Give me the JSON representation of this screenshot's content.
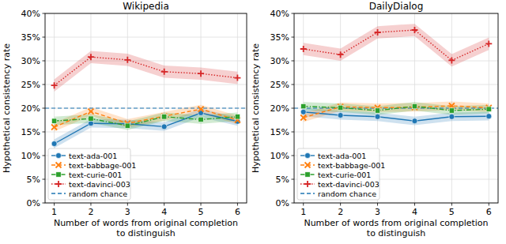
{
  "chart_data": [
    {
      "type": "line",
      "title": "Wikipedia",
      "x_label": "Number of words from original completion\nto distinguish",
      "y_label": "Hypothetical consistency rate",
      "x": [
        1,
        2,
        3,
        4,
        5,
        6
      ],
      "xlim": [
        0.75,
        6.25
      ],
      "xticks": [
        1,
        2,
        3,
        4,
        5,
        6
      ],
      "ylim": [
        0,
        40
      ],
      "yticks": [
        {
          "value": 0,
          "label": "0%"
        },
        {
          "value": 5,
          "label": "5%"
        },
        {
          "value": 10,
          "label": "10%"
        },
        {
          "value": 15,
          "label": "15%"
        },
        {
          "value": 20,
          "label": "20%"
        },
        {
          "value": 25,
          "label": "25%"
        },
        {
          "value": 30,
          "label": "30%"
        },
        {
          "value": 35,
          "label": "35%"
        },
        {
          "value": 40,
          "label": "40%"
        }
      ],
      "grid": true,
      "legend": "lower left",
      "series": [
        {
          "name": "text-ada-001",
          "color": "#1f77b4",
          "marker": "circle",
          "line_style": "solid",
          "values": [
            12.5,
            16.8,
            16.7,
            16.1,
            19.0,
            17.2
          ],
          "error": [
            0.9,
            0.9,
            0.9,
            0.9,
            0.9,
            0.9
          ]
        },
        {
          "name": "text-babbage-001",
          "color": "#ff7f0e",
          "marker": "x",
          "line_style": "dashed",
          "values": [
            16.0,
            19.3,
            16.8,
            18.3,
            19.8,
            17.5
          ],
          "error": [
            0.9,
            0.9,
            0.9,
            0.9,
            0.9,
            0.9
          ]
        },
        {
          "name": "text-curie-001",
          "color": "#2ca02c",
          "marker": "square",
          "line_style": "dashdot",
          "values": [
            17.3,
            17.8,
            16.3,
            18.2,
            17.6,
            18.2
          ],
          "error": [
            0.9,
            0.9,
            0.9,
            0.9,
            0.9,
            0.9
          ]
        },
        {
          "name": "text-davinci-003",
          "color": "#d62728",
          "marker": "plus",
          "line_style": "dotted",
          "values": [
            24.8,
            30.8,
            30.2,
            27.7,
            27.3,
            26.4
          ],
          "error": [
            1.3,
            1.3,
            1.3,
            1.3,
            1.3,
            1.3
          ]
        }
      ],
      "baseline": {
        "name": "random chance",
        "value": 20,
        "color": "#1f77b4",
        "line_style": "dashed"
      }
    },
    {
      "type": "line",
      "title": "DailyDialog",
      "x_label": "Number of words from original completion\nto distinguish",
      "y_label": "Hypothetical consistency rate",
      "x": [
        1,
        2,
        3,
        4,
        5,
        6
      ],
      "xlim": [
        0.75,
        6.25
      ],
      "xticks": [
        1,
        2,
        3,
        4,
        5,
        6
      ],
      "ylim": [
        0,
        40
      ],
      "yticks": [
        {
          "value": 0,
          "label": "0%"
        },
        {
          "value": 5,
          "label": "5%"
        },
        {
          "value": 10,
          "label": "10%"
        },
        {
          "value": 15,
          "label": "15%"
        },
        {
          "value": 20,
          "label": "20%"
        },
        {
          "value": 25,
          "label": "25%"
        },
        {
          "value": 30,
          "label": "30%"
        },
        {
          "value": 35,
          "label": "35%"
        },
        {
          "value": 40,
          "label": "40%"
        }
      ],
      "grid": true,
      "legend": "lower left",
      "series": [
        {
          "name": "text-ada-001",
          "color": "#1f77b4",
          "marker": "circle",
          "line_style": "solid",
          "values": [
            19.2,
            18.5,
            18.2,
            17.3,
            18.2,
            18.3
          ],
          "error": [
            0.9,
            0.9,
            0.9,
            0.9,
            0.9,
            0.9
          ]
        },
        {
          "name": "text-babbage-001",
          "color": "#ff7f0e",
          "marker": "x",
          "line_style": "dashed",
          "values": [
            18.0,
            20.3,
            20.1,
            20.2,
            20.5,
            20.1
          ],
          "error": [
            0.9,
            0.9,
            0.9,
            0.9,
            0.9,
            0.9
          ]
        },
        {
          "name": "text-curie-001",
          "color": "#2ca02c",
          "marker": "square",
          "line_style": "dashdot",
          "values": [
            20.4,
            20.1,
            19.5,
            20.4,
            19.5,
            19.8
          ],
          "error": [
            0.9,
            0.9,
            0.9,
            0.9,
            0.9,
            0.9
          ]
        },
        {
          "name": "text-davinci-003",
          "color": "#d62728",
          "marker": "plus",
          "line_style": "dotted",
          "values": [
            32.5,
            31.3,
            36.0,
            36.5,
            30.1,
            33.6
          ],
          "error": [
            1.3,
            1.3,
            1.3,
            1.3,
            1.3,
            1.3
          ]
        }
      ],
      "baseline": {
        "name": "random chance",
        "value": 20,
        "color": "#1f77b4",
        "line_style": "dashed"
      }
    }
  ]
}
